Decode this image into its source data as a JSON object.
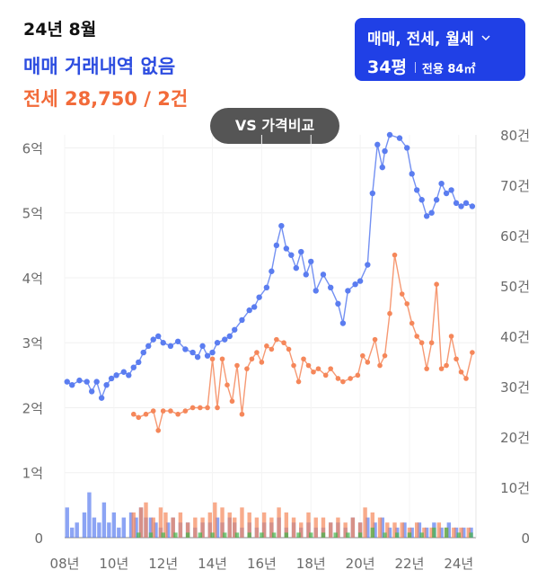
{
  "header": {
    "date": "24년 8월",
    "sale_line": "매매 거래내역 없음",
    "jeonse_line": "전세 28,750 / 2건"
  },
  "selector": {
    "trade_types": "매매, 전세, 월세",
    "size": "34평",
    "area": "전용 84㎡",
    "icon": "chevron-down-icon"
  },
  "compare_button": {
    "label": "VS 가격비교"
  },
  "colors": {
    "sale": "#5b7df0",
    "jeonse": "#f5875a",
    "rent": "#43b34a",
    "accent": "#2040e6"
  },
  "chart_data": {
    "type": "line",
    "x_ticks": [
      "08년",
      "10년",
      "12년",
      "14년",
      "16년",
      "18년",
      "20년",
      "22년",
      "24년"
    ],
    "xlim": [
      2008.0,
      2024.7
    ],
    "y_left_ticks": [
      "0",
      "1억",
      "2억",
      "3억",
      "4억",
      "5억",
      "6억"
    ],
    "ylim_left": [
      0,
      6.2
    ],
    "y_right_ticks": [
      "0",
      "10건",
      "20건",
      "30건",
      "40건",
      "50건",
      "60건",
      "70건",
      "80건"
    ],
    "ylim_right": [
      0,
      80
    ],
    "grid": true,
    "series": [
      {
        "kind": "line",
        "axis": "left",
        "unit": "억",
        "points": [
          [
            2008.1,
            2.4
          ],
          [
            2008.3,
            2.35
          ],
          [
            2008.6,
            2.42
          ],
          [
            2008.9,
            2.4
          ],
          [
            2009.1,
            2.25
          ],
          [
            2009.3,
            2.4
          ],
          [
            2009.5,
            2.15
          ],
          [
            2009.7,
            2.35
          ],
          [
            2009.9,
            2.45
          ],
          [
            2010.1,
            2.5
          ],
          [
            2010.4,
            2.55
          ],
          [
            2010.6,
            2.5
          ],
          [
            2010.8,
            2.62
          ],
          [
            2011.0,
            2.7
          ],
          [
            2011.2,
            2.85
          ],
          [
            2011.4,
            2.95
          ],
          [
            2011.6,
            3.05
          ],
          [
            2011.8,
            3.1
          ],
          [
            2012.0,
            3.0
          ],
          [
            2012.3,
            2.95
          ],
          [
            2012.6,
            3.02
          ],
          [
            2012.9,
            2.9
          ],
          [
            2013.2,
            2.85
          ],
          [
            2013.4,
            2.78
          ],
          [
            2013.6,
            2.95
          ],
          [
            2013.8,
            2.8
          ],
          [
            2014.0,
            2.85
          ],
          [
            2014.2,
            3.0
          ],
          [
            2014.5,
            3.05
          ],
          [
            2014.7,
            3.1
          ],
          [
            2014.9,
            3.2
          ],
          [
            2015.2,
            3.35
          ],
          [
            2015.5,
            3.5
          ],
          [
            2015.7,
            3.55
          ],
          [
            2015.9,
            3.7
          ],
          [
            2016.2,
            3.85
          ],
          [
            2016.4,
            4.1
          ],
          [
            2016.6,
            4.5
          ],
          [
            2016.8,
            4.8
          ],
          [
            2017.0,
            4.45
          ],
          [
            2017.2,
            4.35
          ],
          [
            2017.4,
            4.15
          ],
          [
            2017.6,
            4.4
          ],
          [
            2017.8,
            4.05
          ],
          [
            2018.0,
            4.25
          ],
          [
            2018.2,
            3.8
          ],
          [
            2018.5,
            4.05
          ],
          [
            2018.8,
            3.85
          ],
          [
            2019.1,
            3.6
          ],
          [
            2019.3,
            3.3
          ],
          [
            2019.5,
            3.8
          ],
          [
            2019.8,
            3.9
          ],
          [
            2020.0,
            3.95
          ],
          [
            2020.3,
            4.2
          ],
          [
            2020.5,
            5.3
          ],
          [
            2020.7,
            6.05
          ],
          [
            2020.9,
            5.7
          ],
          [
            2021.0,
            5.95
          ],
          [
            2021.2,
            6.2
          ],
          [
            2021.6,
            6.15
          ],
          [
            2021.9,
            6.0
          ],
          [
            2022.1,
            5.6
          ],
          [
            2022.3,
            5.35
          ],
          [
            2022.5,
            5.2
          ],
          [
            2022.7,
            4.95
          ],
          [
            2022.9,
            5.0
          ],
          [
            2023.1,
            5.2
          ],
          [
            2023.3,
            5.45
          ],
          [
            2023.5,
            5.3
          ],
          [
            2023.7,
            5.35
          ],
          [
            2023.9,
            5.15
          ],
          [
            2024.1,
            5.1
          ],
          [
            2024.3,
            5.15
          ],
          [
            2024.55,
            5.1
          ]
        ]
      },
      {
        "kind": "line",
        "axis": "left",
        "unit": "억",
        "points": [
          [
            2010.8,
            1.9
          ],
          [
            2011.0,
            1.85
          ],
          [
            2011.3,
            1.9
          ],
          [
            2011.6,
            1.95
          ],
          [
            2011.8,
            1.65
          ],
          [
            2012.0,
            1.95
          ],
          [
            2012.3,
            1.95
          ],
          [
            2012.6,
            1.9
          ],
          [
            2012.9,
            1.95
          ],
          [
            2013.2,
            2.0
          ],
          [
            2013.5,
            2.0
          ],
          [
            2013.8,
            2.0
          ],
          [
            2014.0,
            2.75
          ],
          [
            2014.2,
            2.0
          ],
          [
            2014.4,
            2.75
          ],
          [
            2014.6,
            2.35
          ],
          [
            2014.8,
            2.1
          ],
          [
            2015.0,
            2.65
          ],
          [
            2015.2,
            1.9
          ],
          [
            2015.4,
            2.6
          ],
          [
            2015.6,
            2.75
          ],
          [
            2015.8,
            2.85
          ],
          [
            2016.0,
            2.7
          ],
          [
            2016.2,
            2.95
          ],
          [
            2016.4,
            2.9
          ],
          [
            2016.6,
            3.05
          ],
          [
            2016.9,
            3.0
          ],
          [
            2017.1,
            2.9
          ],
          [
            2017.3,
            2.65
          ],
          [
            2017.5,
            2.4
          ],
          [
            2017.7,
            2.75
          ],
          [
            2017.9,
            2.65
          ],
          [
            2018.1,
            2.55
          ],
          [
            2018.3,
            2.6
          ],
          [
            2018.6,
            2.5
          ],
          [
            2018.8,
            2.6
          ],
          [
            2019.1,
            2.45
          ],
          [
            2019.3,
            2.4
          ],
          [
            2019.6,
            2.45
          ],
          [
            2019.9,
            2.5
          ],
          [
            2020.1,
            2.8
          ],
          [
            2020.3,
            2.7
          ],
          [
            2020.6,
            3.05
          ],
          [
            2020.8,
            2.65
          ],
          [
            2021.0,
            2.8
          ],
          [
            2021.2,
            3.45
          ],
          [
            2021.4,
            4.35
          ],
          [
            2021.7,
            3.75
          ],
          [
            2021.9,
            3.6
          ],
          [
            2022.1,
            3.3
          ],
          [
            2022.3,
            3.1
          ],
          [
            2022.5,
            3.0
          ],
          [
            2022.7,
            2.6
          ],
          [
            2022.9,
            3.0
          ],
          [
            2023.1,
            3.9
          ],
          [
            2023.3,
            2.6
          ],
          [
            2023.5,
            2.65
          ],
          [
            2023.7,
            3.1
          ],
          [
            2023.9,
            2.75
          ],
          [
            2024.1,
            2.55
          ],
          [
            2024.3,
            2.45
          ],
          [
            2024.55,
            2.85
          ]
        ]
      },
      {
        "kind": "bar",
        "axis": "right",
        "unit": "건",
        "points": [
          [
            2008.1,
            6
          ],
          [
            2008.3,
            2
          ],
          [
            2008.5,
            3
          ],
          [
            2008.8,
            5
          ],
          [
            2009.0,
            9
          ],
          [
            2009.2,
            4
          ],
          [
            2009.4,
            3
          ],
          [
            2009.6,
            7
          ],
          [
            2009.8,
            3
          ],
          [
            2010.0,
            5
          ],
          [
            2010.2,
            2
          ],
          [
            2010.4,
            4
          ],
          [
            2010.7,
            5
          ],
          [
            2010.9,
            4
          ],
          [
            2011.1,
            6
          ],
          [
            2011.3,
            4
          ],
          [
            2011.5,
            4
          ],
          [
            2011.7,
            3
          ],
          [
            2011.9,
            2
          ],
          [
            2012.2,
            3
          ],
          [
            2012.4,
            4
          ],
          [
            2012.7,
            3
          ],
          [
            2013.0,
            3
          ],
          [
            2013.3,
            2
          ],
          [
            2013.6,
            3
          ],
          [
            2013.9,
            3
          ],
          [
            2014.2,
            4
          ],
          [
            2014.4,
            3
          ],
          [
            2014.7,
            4
          ],
          [
            2014.9,
            3
          ],
          [
            2015.2,
            2
          ],
          [
            2015.5,
            3
          ],
          [
            2015.8,
            2
          ],
          [
            2016.1,
            3
          ],
          [
            2016.4,
            3
          ],
          [
            2016.7,
            4
          ],
          [
            2017.0,
            2
          ],
          [
            2017.3,
            3
          ],
          [
            2017.6,
            2
          ],
          [
            2017.9,
            3
          ],
          [
            2018.2,
            2
          ],
          [
            2018.5,
            2
          ],
          [
            2018.8,
            3
          ],
          [
            2019.1,
            3
          ],
          [
            2019.4,
            2
          ],
          [
            2019.7,
            4
          ],
          [
            2020.0,
            3
          ],
          [
            2020.3,
            4
          ],
          [
            2020.6,
            3
          ],
          [
            2020.9,
            4
          ],
          [
            2021.2,
            2
          ],
          [
            2021.5,
            2
          ],
          [
            2021.8,
            3
          ],
          [
            2022.1,
            2
          ],
          [
            2022.4,
            3
          ],
          [
            2022.7,
            2
          ],
          [
            2023.0,
            3
          ],
          [
            2023.3,
            2
          ],
          [
            2023.6,
            3
          ],
          [
            2023.9,
            2
          ],
          [
            2024.2,
            2
          ],
          [
            2024.5,
            2
          ]
        ]
      },
      {
        "kind": "bar",
        "axis": "right",
        "unit": "건",
        "points": [
          [
            2010.8,
            5
          ],
          [
            2011.1,
            6
          ],
          [
            2011.3,
            7
          ],
          [
            2011.6,
            4
          ],
          [
            2011.9,
            6
          ],
          [
            2012.1,
            5
          ],
          [
            2012.4,
            4
          ],
          [
            2012.7,
            5
          ],
          [
            2013.0,
            3
          ],
          [
            2013.3,
            4
          ],
          [
            2013.6,
            4
          ],
          [
            2013.9,
            5
          ],
          [
            2014.1,
            7
          ],
          [
            2014.4,
            6
          ],
          [
            2014.7,
            5
          ],
          [
            2014.9,
            4
          ],
          [
            2015.2,
            6
          ],
          [
            2015.5,
            5
          ],
          [
            2015.8,
            4
          ],
          [
            2016.1,
            5
          ],
          [
            2016.4,
            4
          ],
          [
            2016.7,
            6
          ],
          [
            2017.0,
            5
          ],
          [
            2017.3,
            4
          ],
          [
            2017.6,
            3
          ],
          [
            2017.9,
            5
          ],
          [
            2018.2,
            4
          ],
          [
            2018.5,
            4
          ],
          [
            2018.8,
            3
          ],
          [
            2019.1,
            4
          ],
          [
            2019.4,
            3
          ],
          [
            2019.7,
            4
          ],
          [
            2020.0,
            3
          ],
          [
            2020.2,
            6
          ],
          [
            2020.5,
            5
          ],
          [
            2020.8,
            4
          ],
          [
            2021.1,
            3
          ],
          [
            2021.4,
            3
          ],
          [
            2021.7,
            3
          ],
          [
            2022.0,
            2
          ],
          [
            2022.3,
            3
          ],
          [
            2022.6,
            2
          ],
          [
            2022.9,
            2
          ],
          [
            2023.2,
            3
          ],
          [
            2023.5,
            2
          ],
          [
            2023.8,
            2
          ],
          [
            2024.1,
            2
          ],
          [
            2024.4,
            2
          ]
        ]
      },
      {
        "kind": "bar",
        "axis": "right",
        "unit": "건",
        "points": [
          [
            2011.0,
            1
          ],
          [
            2011.5,
            1
          ],
          [
            2012.0,
            1
          ],
          [
            2012.5,
            1
          ],
          [
            2013.0,
            1
          ],
          [
            2013.5,
            1
          ],
          [
            2014.0,
            1
          ],
          [
            2014.5,
            1
          ],
          [
            2015.0,
            1
          ],
          [
            2015.5,
            1
          ],
          [
            2016.0,
            1
          ],
          [
            2016.5,
            1
          ],
          [
            2017.0,
            1
          ],
          [
            2017.5,
            1
          ],
          [
            2018.0,
            1
          ],
          [
            2018.5,
            1
          ],
          [
            2019.0,
            1
          ],
          [
            2019.5,
            1
          ],
          [
            2020.0,
            1
          ],
          [
            2020.5,
            2
          ],
          [
            2021.0,
            1
          ],
          [
            2021.5,
            1
          ],
          [
            2022.0,
            1
          ],
          [
            2022.5,
            1
          ],
          [
            2023.0,
            2
          ],
          [
            2023.5,
            2
          ],
          [
            2024.0,
            1
          ],
          [
            2024.5,
            1
          ]
        ]
      }
    ]
  }
}
